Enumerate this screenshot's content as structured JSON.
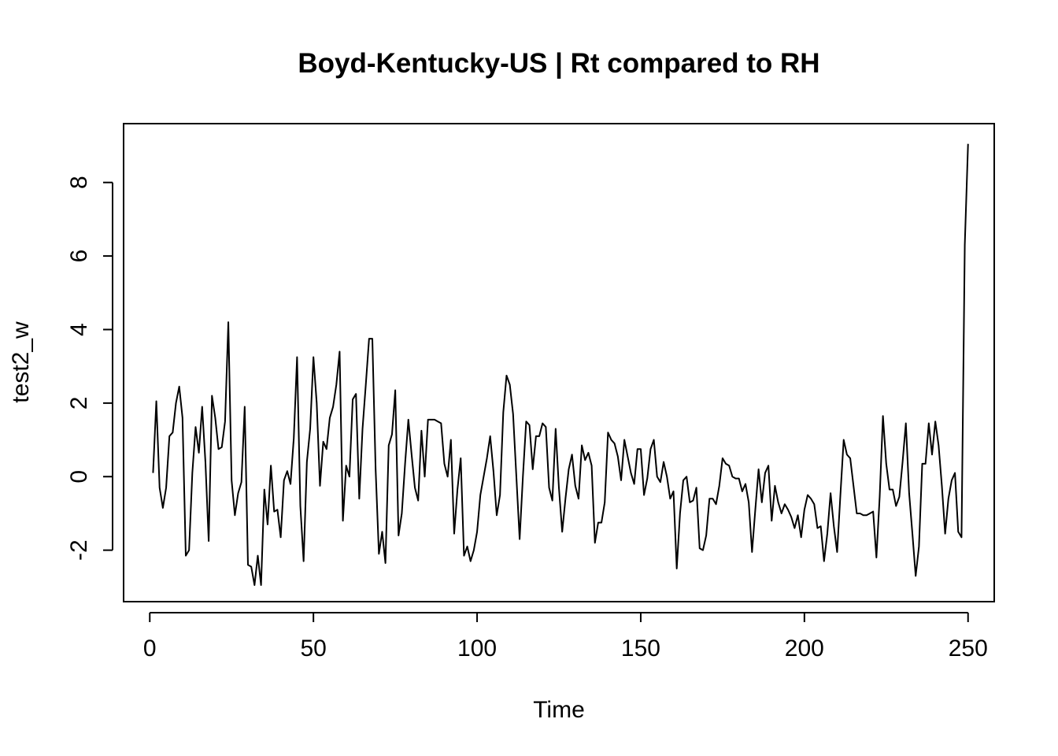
{
  "chart_data": {
    "type": "line",
    "title": "Boyd-Kentucky-US | Rt compared to RH",
    "xlabel": "Time",
    "ylabel": "test2_w",
    "xlim": [
      -8,
      258
    ],
    "ylim": [
      -3.4,
      9.6
    ],
    "x_ticks": [
      0,
      50,
      100,
      150,
      200,
      250
    ],
    "x_tick_labels": [
      "0",
      "50",
      "100",
      "150",
      "200",
      "250"
    ],
    "y_ticks": [
      -2,
      0,
      2,
      4,
      6,
      8
    ],
    "y_tick_labels": [
      "-2",
      "0",
      "2",
      "4",
      "6",
      "8"
    ],
    "grid": false,
    "legend": "none",
    "series": [
      {
        "color": "#000000",
        "x_start": 1,
        "x_step": 1,
        "values": [
          0.1,
          2.05,
          -0.3,
          -0.85,
          -0.3,
          1.1,
          1.2,
          2.0,
          2.45,
          1.6,
          -2.15,
          -2.0,
          0.1,
          1.35,
          0.65,
          1.9,
          0.4,
          -1.75,
          2.2,
          1.6,
          0.75,
          0.8,
          1.5,
          4.2,
          -0.1,
          -1.05,
          -0.45,
          -0.15,
          1.9,
          -2.4,
          -2.45,
          -2.95,
          -2.15,
          -2.95,
          -0.35,
          -1.3,
          0.3,
          -0.95,
          -0.9,
          -1.65,
          -0.1,
          0.15,
          -0.2,
          1.05,
          3.25,
          -0.8,
          -2.3,
          0.4,
          1.3,
          3.25,
          2.0,
          -0.25,
          0.95,
          0.75,
          1.6,
          1.9,
          2.5,
          3.4,
          -1.2,
          0.3,
          0.0,
          2.1,
          2.25,
          -0.6,
          1.3,
          2.5,
          3.75,
          3.75,
          0.2,
          -2.1,
          -1.5,
          -2.35,
          0.85,
          1.15,
          2.35,
          -1.6,
          -1.0,
          0.35,
          1.55,
          0.6,
          -0.3,
          -0.65,
          1.25,
          0.0,
          1.55,
          1.55,
          1.55,
          1.5,
          1.45,
          0.35,
          0.0,
          1.0,
          -1.55,
          -0.35,
          0.5,
          -2.15,
          -1.9,
          -2.3,
          -2.0,
          -1.5,
          -0.5,
          0.0,
          0.5,
          1.1,
          0.15,
          -1.05,
          -0.5,
          1.75,
          2.75,
          2.5,
          1.7,
          0.0,
          -1.7,
          0.0,
          1.5,
          1.4,
          0.2,
          1.1,
          1.1,
          1.45,
          1.35,
          -0.3,
          -0.65,
          1.3,
          -0.3,
          -1.5,
          -0.6,
          0.2,
          0.6,
          -0.25,
          -0.6,
          0.85,
          0.45,
          0.65,
          0.3,
          -1.8,
          -1.25,
          -1.25,
          -0.7,
          1.2,
          1.0,
          0.9,
          0.55,
          -0.1,
          1.0,
          0.55,
          0.1,
          -0.2,
          0.75,
          0.75,
          -0.5,
          -0.05,
          0.75,
          1.0,
          0.0,
          -0.15,
          0.4,
          0.0,
          -0.6,
          -0.4,
          -2.5,
          -1.0,
          -0.1,
          0.0,
          -0.7,
          -0.65,
          -0.3,
          -1.95,
          -2.0,
          -1.6,
          -0.6,
          -0.6,
          -0.75,
          -0.25,
          0.5,
          0.35,
          0.3,
          0.0,
          -0.05,
          -0.05,
          -0.4,
          -0.2,
          -0.7,
          -2.05,
          -0.9,
          0.2,
          -0.7,
          0.1,
          0.3,
          -1.2,
          -0.25,
          -0.7,
          -1.0,
          -0.75,
          -0.9,
          -1.1,
          -1.4,
          -1.05,
          -1.65,
          -0.9,
          -0.5,
          -0.6,
          -0.75,
          -1.4,
          -1.35,
          -2.3,
          -1.55,
          -0.45,
          -1.35,
          -2.05,
          -0.5,
          1.0,
          0.6,
          0.5,
          -0.25,
          -1.0,
          -1.0,
          -1.05,
          -1.05,
          -1.0,
          -0.95,
          -2.2,
          -0.55,
          1.65,
          0.35,
          -0.35,
          -0.35,
          -0.8,
          -0.55,
          0.4,
          1.45,
          -0.45,
          -1.55,
          -2.7,
          -1.9,
          0.35,
          0.35,
          1.45,
          0.6,
          1.5,
          0.85,
          -0.25,
          -1.55,
          -0.6,
          -0.1,
          0.1,
          -1.5,
          -1.65,
          6.3,
          9.05
        ]
      }
    ]
  }
}
